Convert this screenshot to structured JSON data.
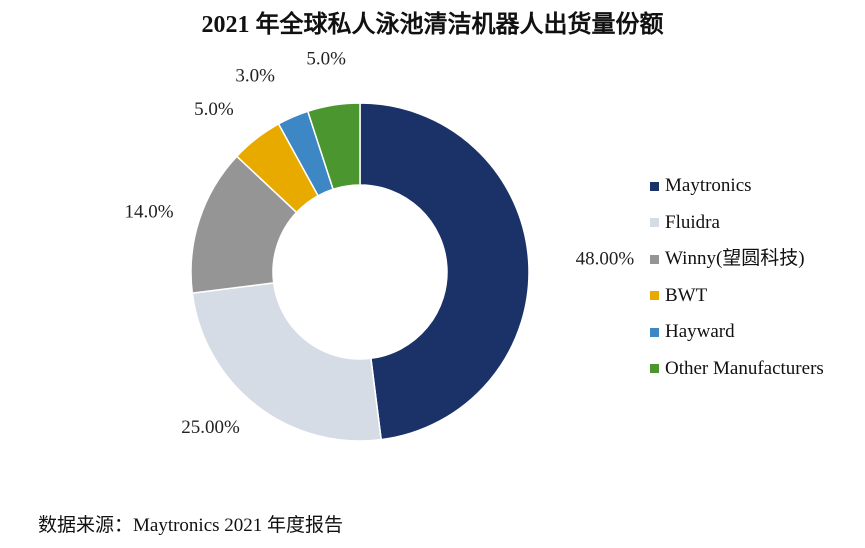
{
  "chart_data": {
    "type": "pie",
    "title": "2021 年全球私人泳池清洁机器人出货量份额",
    "categories": [
      "Maytronics",
      "Fluidra",
      "Winny(望圆科技)",
      "BWT",
      "Hayward",
      "Other Manufacturers"
    ],
    "values": [
      48.0,
      25.0,
      14.0,
      5.0,
      3.0,
      5.0
    ],
    "value_labels": [
      "48.00%",
      "25.00%",
      "14.0%",
      "5.0%",
      "3.0%",
      "5.0%"
    ],
    "colors": [
      "#1b3269",
      "#d6dce6",
      "#959595",
      "#e9aa00",
      "#3d87c4",
      "#4b962e"
    ],
    "donut": true,
    "legend_position": "right"
  },
  "source_note": "数据来源：Maytronics 2021 年度报告"
}
